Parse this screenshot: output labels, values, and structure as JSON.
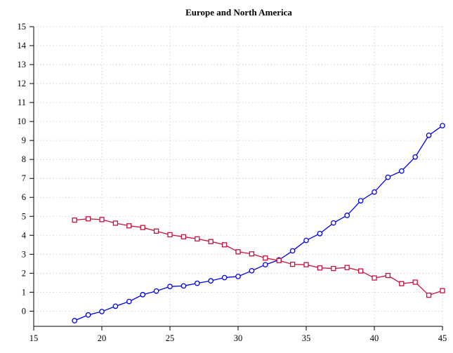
{
  "chart_data": {
    "type": "line",
    "title": "Europe and North America",
    "xlabel": "",
    "ylabel": "",
    "xlim": [
      15,
      45
    ],
    "ylim": [
      -0.8,
      15
    ],
    "xticks": [
      15,
      20,
      25,
      30,
      35,
      40,
      45
    ],
    "yticks": [
      0,
      1,
      2,
      3,
      4,
      5,
      6,
      7,
      8,
      9,
      10,
      11,
      12,
      13,
      14,
      15
    ],
    "grid": true,
    "legend": "none",
    "x": [
      18,
      19,
      20,
      21,
      22,
      23,
      24,
      25,
      26,
      27,
      28,
      29,
      30,
      31,
      32,
      33,
      34,
      35,
      36,
      37,
      38,
      39,
      40,
      41,
      42,
      43,
      44,
      45
    ],
    "series": [
      {
        "marker": "circle",
        "color": "#0000ee",
        "values": [
          -0.5,
          -0.2,
          -0.02,
          0.26,
          0.51,
          0.87,
          1.06,
          1.3,
          1.33,
          1.47,
          1.6,
          1.77,
          1.83,
          2.13,
          2.45,
          2.7,
          3.18,
          3.73,
          4.09,
          4.65,
          5.05,
          5.82,
          6.28,
          7.06,
          7.39,
          8.13,
          9.27,
          9.78
        ]
      },
      {
        "marker": "square",
        "color": "#c8103c",
        "values": [
          4.8,
          4.87,
          4.83,
          4.64,
          4.5,
          4.41,
          4.22,
          4.03,
          3.92,
          3.81,
          3.67,
          3.5,
          3.13,
          3.02,
          2.8,
          2.67,
          2.47,
          2.45,
          2.28,
          2.25,
          2.3,
          2.12,
          1.75,
          1.88,
          1.45,
          1.53,
          0.84,
          1.08
        ]
      }
    ]
  }
}
